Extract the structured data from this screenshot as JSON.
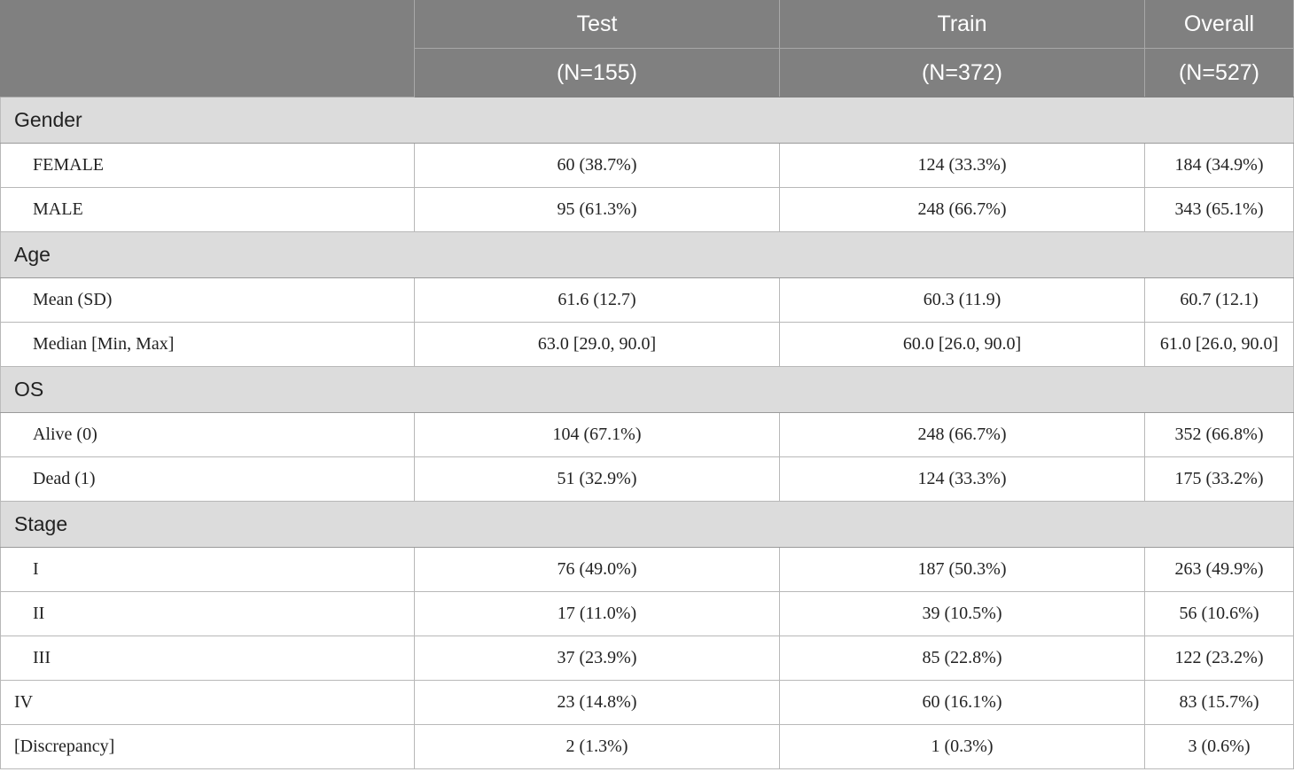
{
  "header": {
    "columns": [
      {
        "name": "Test",
        "n": "(N=155)"
      },
      {
        "name": "Train",
        "n": "(N=372)"
      },
      {
        "name": "Overall",
        "n": "(N=527)"
      }
    ]
  },
  "sections": [
    {
      "title": "Gender",
      "rows": [
        {
          "label": "FEMALE",
          "test": "60 (38.7%)",
          "train": "124 (33.3%)",
          "overall": "184 (34.9%)"
        },
        {
          "label": "MALE",
          "test": "95 (61.3%)",
          "train": "248 (66.7%)",
          "overall": "343 (65.1%)"
        }
      ]
    },
    {
      "title": "Age",
      "rows": [
        {
          "label": "Mean (SD)",
          "test": "61.6 (12.7)",
          "train": "60.3 (11.9)",
          "overall": "60.7 (12.1)"
        },
        {
          "label": "Median [Min, Max]",
          "test": "63.0 [29.0, 90.0]",
          "train": "60.0 [26.0, 90.0]",
          "overall": "61.0 [26.0, 90.0]"
        }
      ]
    },
    {
      "title": "OS",
      "rows": [
        {
          "label": "Alive (0)",
          "test": "104 (67.1%)",
          "train": "248 (66.7%)",
          "overall": "352 (66.8%)"
        },
        {
          "label": "Dead (1)",
          "test": "51 (32.9%)",
          "train": "124 (33.3%)",
          "overall": "175 (33.2%)"
        }
      ]
    },
    {
      "title": "Stage",
      "rows": [
        {
          "label": "I",
          "test": "76 (49.0%)",
          "train": "187 (50.3%)",
          "overall": "263 (49.9%)"
        },
        {
          "label": "II",
          "test": "17 (11.0%)",
          "train": "39 (10.5%)",
          "overall": "56 (10.6%)"
        },
        {
          "label": "III",
          "test": "37 (23.9%)",
          "train": "85 (22.8%)",
          "overall": "122 (23.2%)"
        },
        {
          "label": "IV",
          "test": "23 (14.8%)",
          "train": "60 (16.1%)",
          "overall": "83 (15.7%)"
        },
        {
          "label": "[Discrepancy]",
          "test": "2 (1.3%)",
          "train": "1 (0.3%)",
          "overall": "3 (0.6%)"
        }
      ]
    }
  ]
}
